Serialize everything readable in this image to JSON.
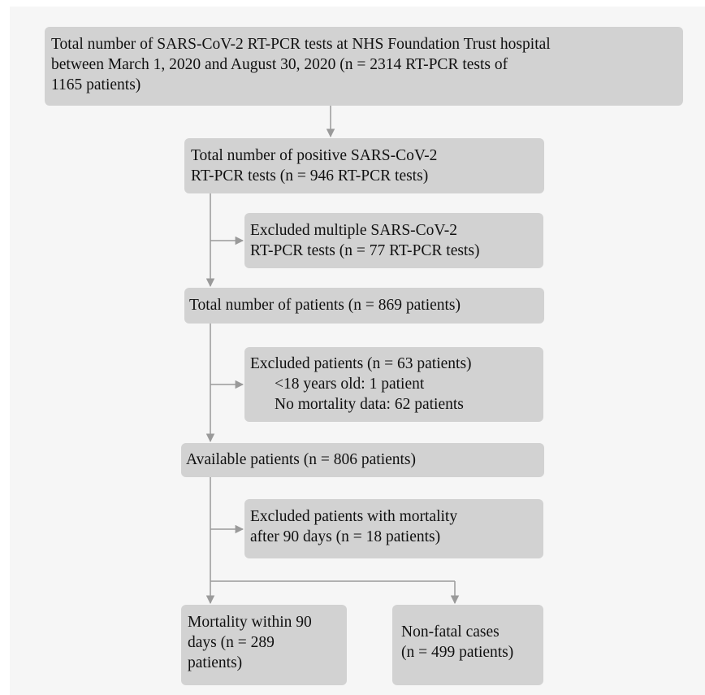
{
  "boxes": {
    "total_tests": [
      "Total number of SARS-CoV-2 RT-PCR tests at NHS Foundation Trust hospital",
      "between March 1, 2020 and August 30, 2020 (n = 2314 RT-PCR tests of",
      "1165 patients)"
    ],
    "positive_tests": [
      "Total number of positive SARS-CoV-2",
      "RT-PCR tests (n = 946 RT-PCR tests)"
    ],
    "excluded_multiple": [
      "Excluded multiple SARS-CoV-2",
      "RT-PCR tests (n = 77 RT-PCR tests)"
    ],
    "total_patients": [
      "Total number of patients (n = 869 patients)"
    ],
    "excluded_patients": {
      "heading": "Excluded patients (n = 63 patients)",
      "items": [
        "<18 years old: 1 patient",
        "No mortality data: 62 patients"
      ]
    },
    "available_patients": [
      "Available patients (n = 806 patients)"
    ],
    "excluded_mortality": [
      "Excluded patients with mortality",
      "after 90 days (n = 18 patients)"
    ],
    "mortality_90": [
      "Mortality within 90",
      "days (n = 289",
      "patients)"
    ],
    "non_fatal": [
      "Non-fatal cases",
      "(n = 499 patients)"
    ]
  },
  "colors": {
    "box": "#d2d2d2",
    "arrow": "#9a9a9a",
    "background": "#f6f6f6"
  }
}
